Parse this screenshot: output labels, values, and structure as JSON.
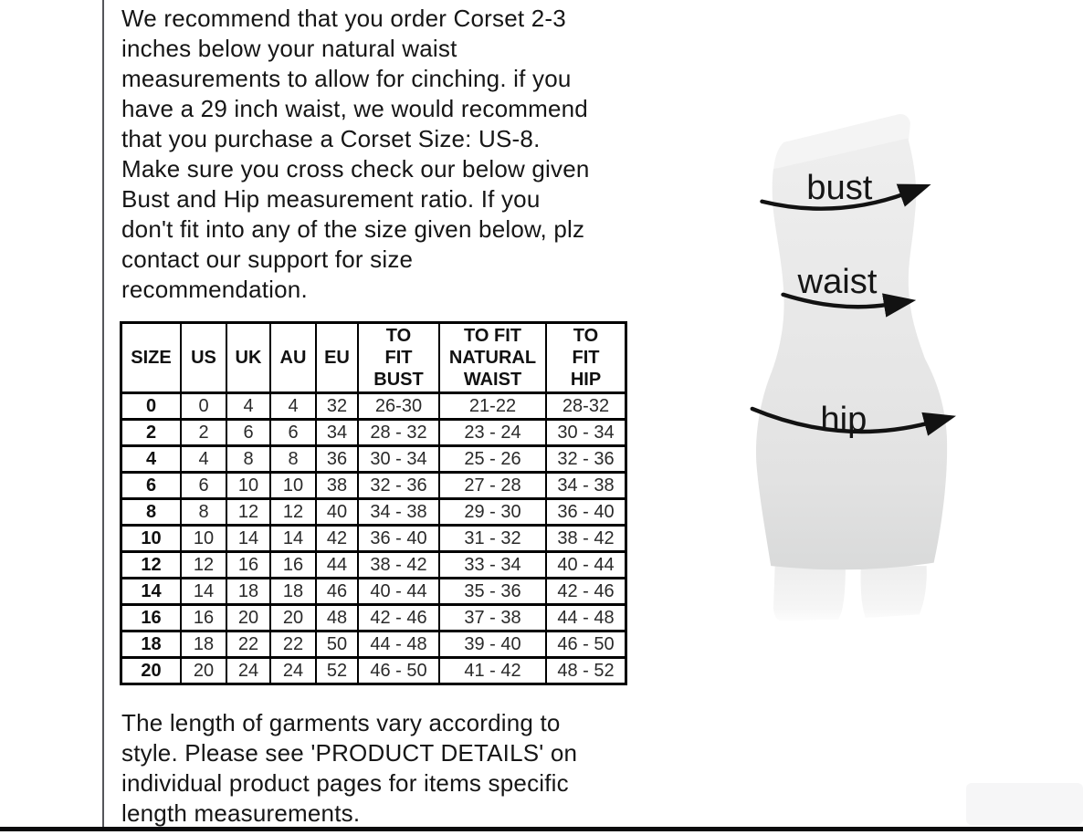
{
  "intro": {
    "lines": [
      "We recommend that you order Corset 2-3",
      "inches below your natural waist",
      "measurements to allow for cinching. if you",
      "have a 29 inch waist, we would recommend",
      "that you purchase a Corset Size: US-8.",
      "Make sure you cross check our below given",
      "Bust and Hip measurement ratio. If you",
      "don't fit into any of the size given below, plz",
      "contact our support for size",
      "recommendation."
    ]
  },
  "footer": {
    "lines": [
      "The length of garments vary according to",
      "style. Please see 'PRODUCT DETAILS'  on",
      "individual product pages for items specific",
      "length measurements."
    ]
  },
  "size_table": {
    "headers": [
      "SIZE",
      "US",
      "UK",
      "AU",
      "EU",
      "TO\nFIT\nBUST",
      "TO FIT\nNATURAL\nWAIST",
      "TO\nFIT\nHIP"
    ],
    "rows": [
      [
        "0",
        "0",
        "4",
        "4",
        "32",
        "26-30",
        "21-22",
        "28-32"
      ],
      [
        "2",
        "2",
        "6",
        "6",
        "34",
        "28 - 32",
        "23 - 24",
        "30 - 34"
      ],
      [
        "4",
        "4",
        "8",
        "8",
        "36",
        "30 - 34",
        "25 - 26",
        "32 - 36"
      ],
      [
        "6",
        "6",
        "10",
        "10",
        "38",
        "32 - 36",
        "27 - 28",
        "34 - 38"
      ],
      [
        "8",
        "8",
        "12",
        "12",
        "40",
        "34 - 38",
        "29 - 30",
        "36 - 40"
      ],
      [
        "10",
        "10",
        "14",
        "14",
        "42",
        "36 - 40",
        "31 - 32",
        "38 - 42"
      ],
      [
        "12",
        "12",
        "16",
        "16",
        "44",
        "38 - 42",
        "33 - 34",
        "40 - 44"
      ],
      [
        "14",
        "14",
        "18",
        "18",
        "46",
        "40 - 44",
        "35 - 36",
        "42 - 46"
      ],
      [
        "16",
        "16",
        "20",
        "20",
        "48",
        "42 - 46",
        "37 - 38",
        "44 - 48"
      ],
      [
        "18",
        "18",
        "22",
        "22",
        "50",
        "44 - 48",
        "39 - 40",
        "46 - 50"
      ],
      [
        "20",
        "20",
        "24",
        "24",
        "52",
        "46 - 50",
        "41 - 42",
        "48 - 52"
      ]
    ]
  },
  "figure": {
    "bust_label": "bust",
    "waist_label": "waist",
    "hip_label": "hip"
  },
  "colors": {
    "text": "#161616",
    "table_border": "#000000",
    "arrow": "#121212",
    "body_light": "#f4f4f4",
    "body_mid": "#e8e8e8",
    "body_dark": "#d9dada",
    "legs": "#f2f2f2",
    "scan_line": "#55565a",
    "bottom_rule": "#0a0a0c"
  }
}
